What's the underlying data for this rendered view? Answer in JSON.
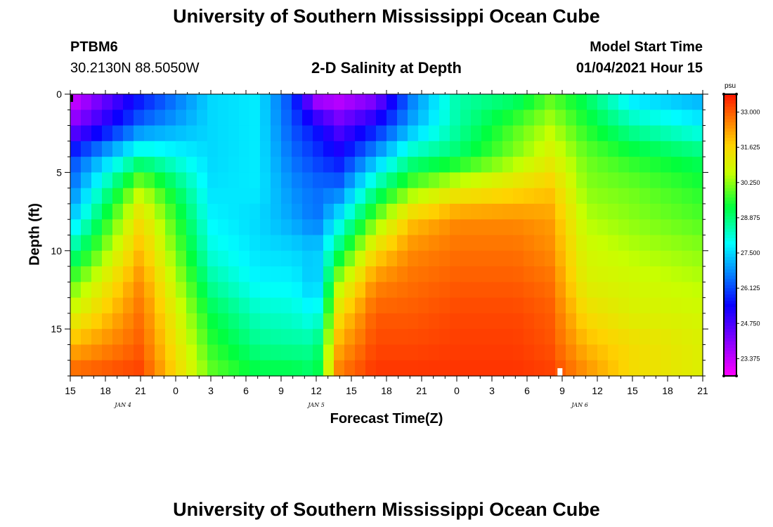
{
  "header": {
    "title_top": "University of Southern Mississippi Ocean Cube",
    "station_name": "PTBM6",
    "station_coords": "30.2130N 88.5050W",
    "plot_title": "2-D Salinity at Depth",
    "model_label": "Model Start Time",
    "model_time": "01/04/2021 Hour 15",
    "title_bottom": "University of Southern Mississippi Ocean Cube"
  },
  "chart_data": {
    "type": "heatmap",
    "title": "2-D Salinity at Depth",
    "xlabel": "Forecast Time(Z)",
    "ylabel": "Depth (ft)",
    "x_tick_labels": [
      "15",
      "18",
      "21",
      "0",
      "3",
      "6",
      "9",
      "12",
      "15",
      "18",
      "21",
      "0",
      "3",
      "6",
      "9",
      "12",
      "15",
      "18",
      "21"
    ],
    "x_range_hours": [
      0,
      54
    ],
    "date_labels": [
      "JAN 4",
      "JAN 5",
      "JAN 6"
    ],
    "date_label_hours": [
      4.5,
      21,
      43.5
    ],
    "y_tick_labels": [
      "0",
      "5",
      "10",
      "15"
    ],
    "y_tick_values": [
      0,
      5,
      10,
      15
    ],
    "y_range": [
      0,
      18
    ],
    "colorbar": {
      "unit": "psu",
      "min": 22.7,
      "max": 33.7,
      "ticks": [
        "33.000",
        "31.625",
        "30.250",
        "28.875",
        "27.500",
        "26.125",
        "24.750",
        "23.375"
      ],
      "tick_values": [
        33.0,
        31.625,
        30.25,
        28.875,
        27.5,
        26.125,
        24.75,
        23.375
      ]
    },
    "depth_levels_ft": [
      0,
      2,
      4,
      6,
      8,
      10,
      12,
      14,
      16,
      18
    ],
    "timeline_hours": [
      0,
      6,
      12,
      16,
      19,
      21,
      23,
      26,
      29,
      33,
      38,
      41,
      44,
      48,
      54
    ],
    "salinity_psu": [
      [
        23.0,
        25.5,
        27.5,
        27.7,
        26.0,
        23.3,
        23.2,
        23.8,
        26.5,
        28.5,
        28.8,
        29.8,
        29.0,
        27.5,
        27.0
      ],
      [
        24.0,
        26.5,
        27.5,
        27.7,
        26.2,
        25.5,
        24.5,
        25.5,
        27.0,
        28.5,
        29.8,
        30.5,
        29.5,
        28.5,
        27.8
      ],
      [
        26.0,
        28.5,
        27.5,
        27.7,
        26.5,
        26.0,
        25.5,
        27.0,
        28.5,
        29.0,
        30.2,
        31.0,
        30.0,
        29.5,
        29.0
      ],
      [
        26.5,
        30.5,
        27.6,
        27.7,
        26.8,
        26.5,
        26.5,
        28.6,
        30.0,
        31.0,
        31.5,
        31.8,
        30.2,
        30.0,
        29.5
      ],
      [
        27.3,
        31.5,
        27.8,
        27.5,
        27.0,
        26.5,
        27.8,
        30.0,
        31.8,
        32.5,
        32.5,
        32.3,
        30.5,
        30.2,
        29.8
      ],
      [
        28.5,
        32.0,
        28.1,
        27.6,
        27.5,
        27.3,
        29.0,
        31.5,
        32.5,
        32.8,
        32.8,
        32.5,
        30.8,
        30.5,
        30.2
      ],
      [
        29.8,
        32.5,
        28.6,
        27.8,
        27.8,
        27.2,
        30.5,
        32.5,
        32.8,
        33.0,
        33.0,
        32.8,
        31.0,
        30.8,
        30.5
      ],
      [
        30.8,
        32.8,
        29.2,
        28.3,
        28.2,
        27.8,
        31.5,
        33.0,
        33.0,
        33.2,
        33.2,
        33.0,
        31.5,
        31.0,
        30.8
      ],
      [
        32.0,
        33.0,
        29.6,
        28.7,
        28.6,
        28.6,
        32.2,
        33.2,
        33.2,
        33.3,
        33.3,
        33.1,
        32.0,
        31.5,
        31.0
      ],
      [
        33.0,
        33.3,
        30.0,
        29.3,
        29.3,
        29.0,
        32.8,
        33.4,
        33.4,
        33.4,
        33.4,
        33.3,
        32.5,
        31.5,
        31.0
      ]
    ]
  }
}
